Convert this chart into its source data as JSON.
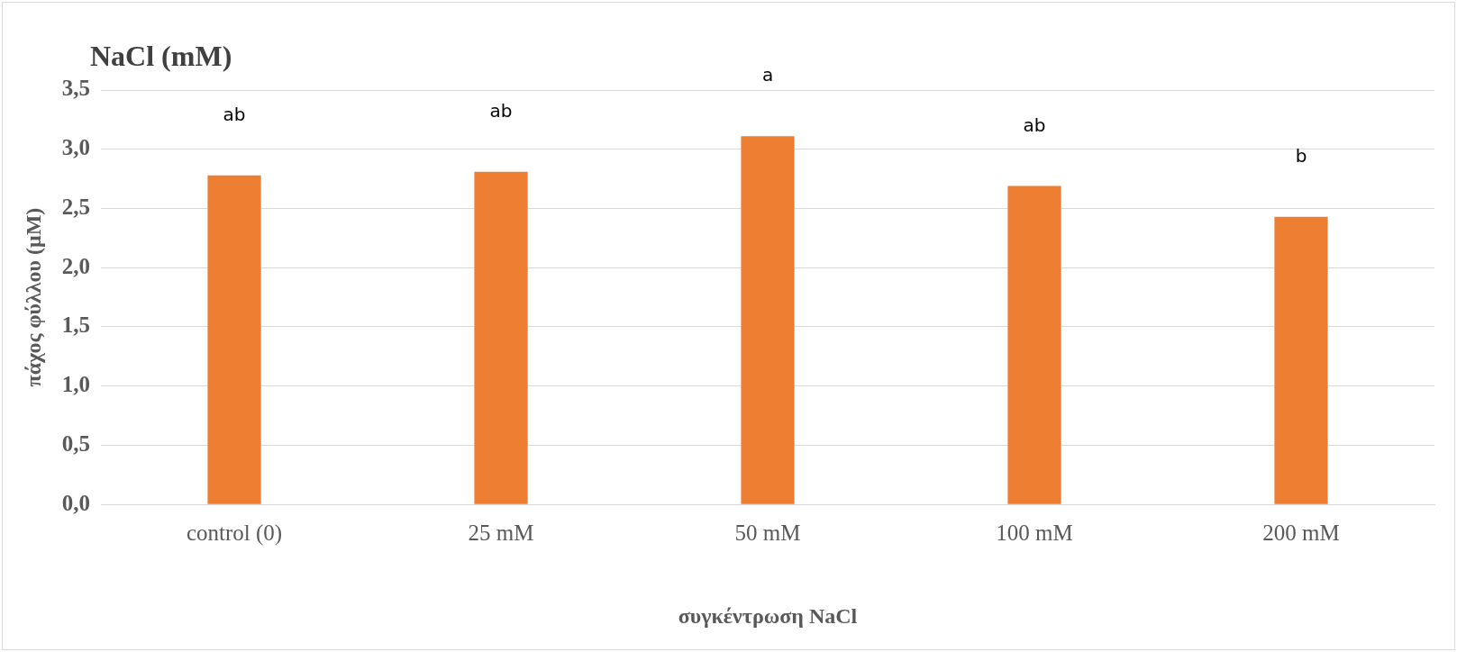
{
  "chart_data": {
    "type": "bar",
    "title": "NaCl (mM)",
    "xlabel": "συγκέντρωση NaCl",
    "ylabel": "πάχος φύλλου (μM)",
    "categories": [
      "control (0)",
      "25 mM",
      "50 mM",
      "100 mM",
      "200 mM"
    ],
    "values": [
      2.78,
      2.81,
      3.11,
      2.69,
      2.43
    ],
    "color": "#ed7d31",
    "ylim": [
      0,
      3.5
    ],
    "yticks": [
      {
        "value": 0,
        "label": "0,0"
      },
      {
        "value": 0.5,
        "label": "0,5"
      },
      {
        "value": 1,
        "label": "1,0"
      },
      {
        "value": 1.5,
        "label": "1,5"
      },
      {
        "value": 2,
        "label": "2,0"
      },
      {
        "value": 2.5,
        "label": "2,5"
      },
      {
        "value": 3,
        "label": "3,0"
      },
      {
        "value": 3.5,
        "label": "3,5"
      }
    ],
    "grid": "y",
    "legend": false,
    "annotations": [
      {
        "text": "ab",
        "x": "control (0)",
        "y": 2.78
      },
      {
        "text": "ab",
        "x": "25 mM",
        "y": 2.81
      },
      {
        "text": "a",
        "x": "50 mM",
        "y": 3.11
      },
      {
        "text": "ab",
        "x": "100 mM",
        "y": 2.69
      },
      {
        "text": "b",
        "x": "200 mM",
        "y": 2.43
      }
    ]
  }
}
